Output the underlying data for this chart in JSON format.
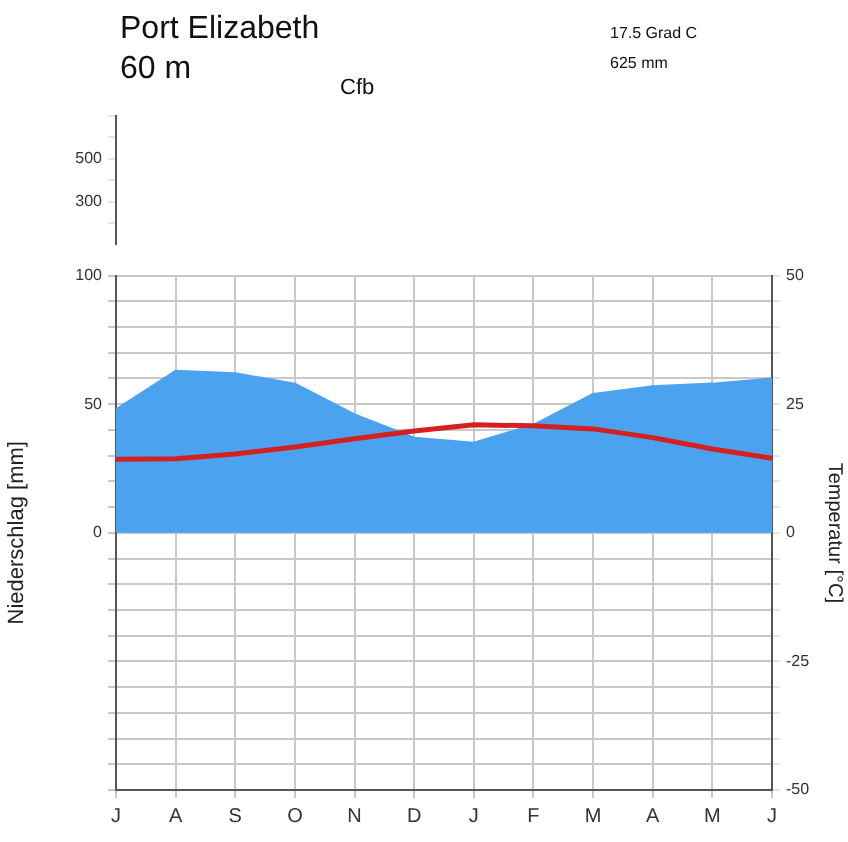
{
  "chart_data": {
    "type": "area",
    "title": "Port Elizabeth",
    "subtitle": "60 m",
    "annotations": [
      "Cfb",
      "17.5 Grad C",
      "625 mm"
    ],
    "ylabel": "Niederschlag [mm]",
    "y2label": "Temperatur [°C]",
    "categories": [
      "J",
      "A",
      "S",
      "O",
      "N",
      "D",
      "J",
      "F",
      "M",
      "A",
      "M",
      "J"
    ],
    "series": [
      {
        "color": "#4ba3f0",
        "values": [
          48,
          63,
          62,
          58,
          46,
          37,
          35,
          42,
          54,
          57,
          58,
          60
        ]
      },
      {
        "type": "line",
        "axis": "y2",
        "color": "#d42020",
        "values": [
          14.3,
          14.4,
          15.3,
          16.7,
          18.3,
          19.8,
          21,
          20.8,
          20.2,
          18.5,
          16.3,
          14.5
        ]
      }
    ],
    "ylim": [
      -100,
      100
    ],
    "yticks": [
      {
        "value": -100,
        "label": null
      },
      {
        "value": -90,
        "label": null
      },
      {
        "value": -80,
        "label": null
      },
      {
        "value": -70,
        "label": null
      },
      {
        "value": -60,
        "label": null
      },
      {
        "value": -50,
        "label": null
      },
      {
        "value": -40,
        "label": null
      },
      {
        "value": -30,
        "label": null
      },
      {
        "value": -20,
        "label": null
      },
      {
        "value": -10,
        "label": null
      },
      0,
      {
        "value": 10,
        "label": null
      },
      {
        "value": 20,
        "label": null
      },
      {
        "value": 30,
        "label": null
      },
      {
        "value": 40,
        "label": null
      },
      50,
      {
        "value": 60,
        "label": null
      },
      {
        "value": 70,
        "label": null
      },
      {
        "value": 80,
        "label": null
      },
      {
        "value": 90,
        "label": null
      },
      100
    ],
    "y2lim": [
      -50,
      50
    ],
    "y2ticks": [
      -50,
      {
        "value": -45,
        "label": null
      },
      {
        "value": -40,
        "label": null
      },
      {
        "value": -35,
        "label": null
      },
      {
        "value": -30,
        "label": null
      },
      -25,
      {
        "value": -20,
        "label": null
      },
      {
        "value": -15,
        "label": null
      },
      {
        "value": -10,
        "label": null
      },
      {
        "value": -5,
        "label": null
      },
      0,
      {
        "value": 5,
        "label": null
      },
      {
        "value": 10,
        "label": null
      },
      {
        "value": 15,
        "label": null
      },
      {
        "value": 20,
        "label": null
      },
      25,
      {
        "value": 30,
        "label": null
      },
      {
        "value": 35,
        "label": null
      },
      {
        "value": 40,
        "label": null
      },
      {
        "value": 45,
        "label": null
      },
      50
    ],
    "y3lim": [
      100,
      700
    ],
    "y3ticks": [
      {
        "value": 200,
        "label": null
      },
      300,
      {
        "value": 400,
        "label": null
      },
      500,
      {
        "value": 600,
        "label": null
      },
      {
        "value": 700,
        "label": null
      }
    ],
    "grid": true,
    "legend": false,
    "marker": "none",
    "line_style": "solid"
  }
}
